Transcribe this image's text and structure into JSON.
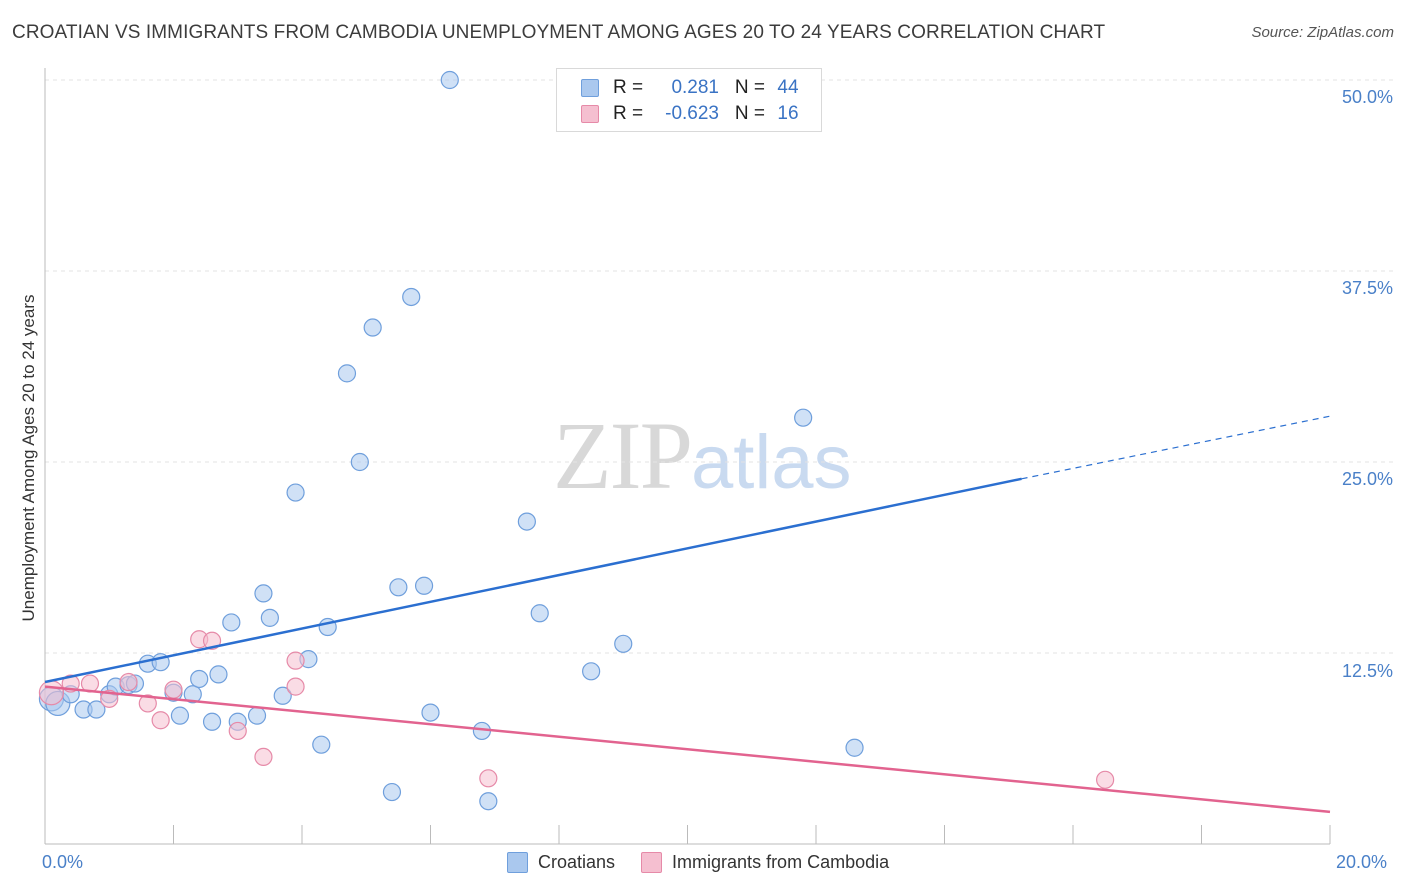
{
  "header": {
    "title": "CROATIAN VS IMMIGRANTS FROM CAMBODIA UNEMPLOYMENT AMONG AGES 20 TO 24 YEARS CORRELATION CHART",
    "source": "Source: ZipAtlas.com"
  },
  "watermark": {
    "zip": "ZIP",
    "atlas": "atlas"
  },
  "legend": {
    "rows": [
      {
        "r_label": "R =",
        "r_value": "0.281",
        "n_label": "N =",
        "n_value": "44"
      },
      {
        "r_label": "R =",
        "r_value": "-0.623",
        "n_label": "N =",
        "n_value": "16"
      }
    ]
  },
  "bottom_legend": {
    "series1": "Croatians",
    "series2": "Immigrants from Cambodia"
  },
  "colors": {
    "blue_fill": "#aac8ee",
    "blue_stroke": "#6f9fdc",
    "blue_line": "#2b6fd0",
    "pink_fill": "#f5bfd0",
    "pink_stroke": "#e68aa8",
    "pink_line": "#e2638f",
    "grid": "#e3e3e3",
    "axis": "#bbbbbb"
  },
  "chart_data": {
    "type": "scatter",
    "title": "CROATIAN VS IMMIGRANTS FROM CAMBODIA UNEMPLOYMENT AMONG AGES 20 TO 24 YEARS CORRELATION CHART",
    "xlabel": "",
    "ylabel": "Unemployment Among Ages 20 to 24 years",
    "xlim": [
      0,
      20
    ],
    "ylim": [
      0,
      50
    ],
    "x_tick_labels": [
      "0.0%",
      "20.0%"
    ],
    "y_ticks": [
      12.5,
      25.0,
      37.5,
      50.0
    ],
    "y_tick_labels": [
      "12.5%",
      "25.0%",
      "37.5%",
      "50.0%"
    ],
    "series": [
      {
        "name": "Croatians",
        "r": 0.281,
        "n": 44,
        "points": [
          [
            0.1,
            9.5
          ],
          [
            0.2,
            9.2
          ],
          [
            0.4,
            9.8
          ],
          [
            0.6,
            8.8
          ],
          [
            0.8,
            8.8
          ],
          [
            1.0,
            9.8
          ],
          [
            1.1,
            10.3
          ],
          [
            1.3,
            10.4
          ],
          [
            1.4,
            10.5
          ],
          [
            1.6,
            11.8
          ],
          [
            1.8,
            11.9
          ],
          [
            2.0,
            9.9
          ],
          [
            2.1,
            8.4
          ],
          [
            2.3,
            9.8
          ],
          [
            2.4,
            10.8
          ],
          [
            2.6,
            8.0
          ],
          [
            2.7,
            11.1
          ],
          [
            2.9,
            14.5
          ],
          [
            3.0,
            8.0
          ],
          [
            3.3,
            8.4
          ],
          [
            3.4,
            16.4
          ],
          [
            3.5,
            14.8
          ],
          [
            3.7,
            9.7
          ],
          [
            3.9,
            23.0
          ],
          [
            4.1,
            12.1
          ],
          [
            4.3,
            6.5
          ],
          [
            4.4,
            14.2
          ],
          [
            4.7,
            30.8
          ],
          [
            4.9,
            25.0
          ],
          [
            5.1,
            33.8
          ],
          [
            5.4,
            3.4
          ],
          [
            5.5,
            16.8
          ],
          [
            5.7,
            35.8
          ],
          [
            5.9,
            16.9
          ],
          [
            6.0,
            8.6
          ],
          [
            6.3,
            50.0
          ],
          [
            6.8,
            7.4
          ],
          [
            6.9,
            2.8
          ],
          [
            7.5,
            21.1
          ],
          [
            7.7,
            15.1
          ],
          [
            8.5,
            11.3
          ],
          [
            9.0,
            13.1
          ],
          [
            11.8,
            27.9
          ],
          [
            12.6,
            6.3
          ]
        ]
      },
      {
        "name": "Immigrants from Cambodia",
        "r": -0.623,
        "n": 16,
        "points": [
          [
            0.1,
            9.9
          ],
          [
            0.4,
            10.5
          ],
          [
            0.7,
            10.5
          ],
          [
            1.0,
            9.5
          ],
          [
            1.3,
            10.6
          ],
          [
            1.6,
            9.2
          ],
          [
            1.8,
            8.1
          ],
          [
            2.0,
            10.1
          ],
          [
            2.4,
            13.4
          ],
          [
            2.6,
            13.3
          ],
          [
            3.0,
            7.4
          ],
          [
            3.4,
            5.7
          ],
          [
            3.9,
            12.0
          ],
          [
            3.9,
            10.3
          ],
          [
            6.9,
            4.3
          ],
          [
            16.5,
            4.2
          ]
        ]
      }
    ],
    "trend_lines": [
      {
        "series": "Croatians",
        "from": [
          0,
          10.6
        ],
        "to": [
          15.2,
          23.9
        ],
        "dashed_to": [
          20,
          28.0
        ]
      },
      {
        "series": "Immigrants from Cambodia",
        "from": [
          0,
          10.3
        ],
        "to": [
          20,
          2.1
        ]
      }
    ]
  }
}
